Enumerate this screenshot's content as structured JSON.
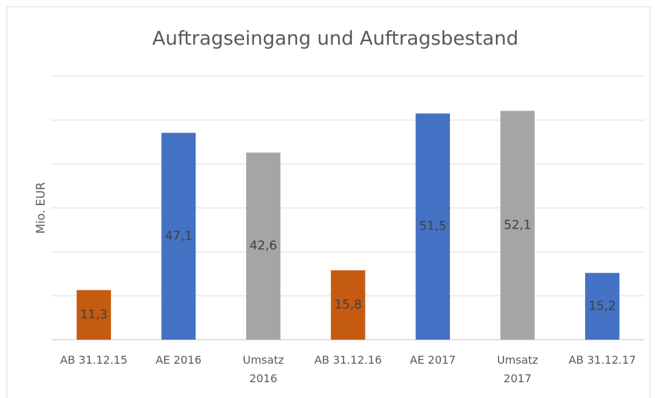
{
  "chart_data": {
    "type": "bar",
    "title": "Auftragseingang und Auftragsbestand",
    "y_label": "Mio. EUR",
    "categories": [
      "AB 31.12.15",
      "AE 2016",
      "Umsatz\n2016",
      "AB 31.12.16",
      "AE 2017",
      "Umsatz\n2017",
      "AB 31.12.17"
    ],
    "values": [
      11.3,
      47.1,
      42.6,
      15.8,
      51.5,
      52.1,
      15.2
    ],
    "value_labels": [
      "11,3",
      "47,1",
      "42,6",
      "15,8",
      "51,5",
      "52,1",
      "15,2"
    ],
    "colors": [
      "#c55a11",
      "#4472c4",
      "#a5a5a5",
      "#c55a11",
      "#4472c4",
      "#a5a5a5",
      "#4472c4"
    ],
    "ylim": [
      0,
      60
    ],
    "yticks": [
      0,
      10,
      20,
      30,
      40,
      50,
      60
    ],
    "grid": true
  }
}
